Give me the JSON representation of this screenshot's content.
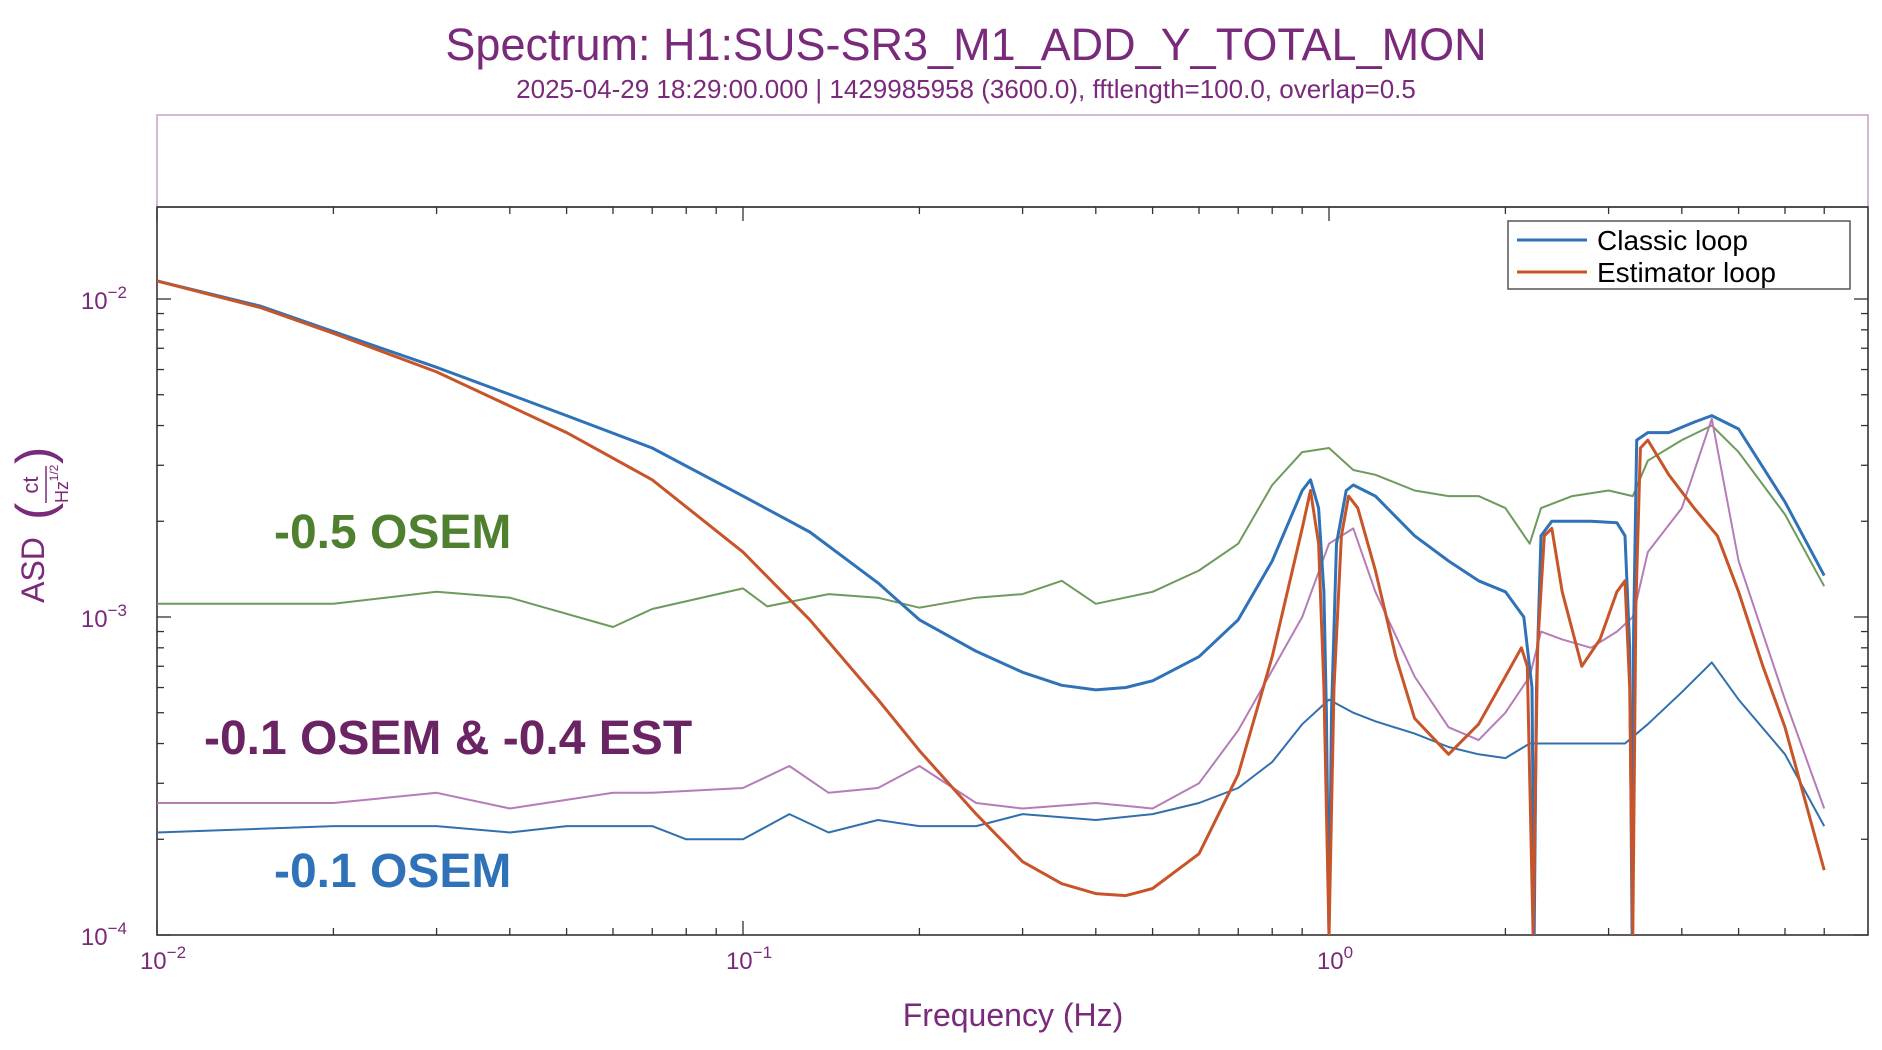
{
  "chart_data": {
    "type": "line",
    "title": "Spectrum: H1:SUS-SR3_M1_ADD_Y_TOTAL_MON",
    "subtitle": "2025-04-29 18:29:00.000 | 1429985958 (3600.0), fftlength=100.0, overlap=0.5",
    "xlabel": "Frequency (Hz)",
    "ylabel": "ASD",
    "ylabel_unit_numerator": "ct",
    "ylabel_unit_denominator": "Hz",
    "ylabel_unit_exponent": "1/2",
    "x_scale": "log",
    "y_scale": "log",
    "xlim": [
      0.01,
      7
    ],
    "ylim": [
      0.0001,
      0.02
    ],
    "grid": false,
    "legend_position": "top-right",
    "x_ticks": [
      {
        "value": 0.01,
        "base": "10",
        "exp": "−2"
      },
      {
        "value": 0.1,
        "base": "10",
        "exp": "−1"
      },
      {
        "value": 1,
        "base": "10",
        "exp": "0"
      }
    ],
    "y_ticks": [
      {
        "value": 0.01,
        "base": "10",
        "exp": "−2"
      },
      {
        "value": 0.001,
        "base": "10",
        "exp": "−3"
      },
      {
        "value": 0.0001,
        "base": "10",
        "exp": "−4"
      }
    ],
    "legend": [
      {
        "name": "Classic loop",
        "color": "#2f72b8"
      },
      {
        "name": "Estimator loop",
        "color": "#c8552a"
      }
    ],
    "annotations": [
      {
        "text": "-0.5 OSEM",
        "color": "#4f8030"
      },
      {
        "text": "-0.1 OSEM  &  -0.4 EST",
        "color": "#6a2464"
      },
      {
        "text": "-0.1 OSEM",
        "color": "#2f72b8"
      }
    ],
    "series": [
      {
        "name": "Classic loop",
        "color": "#2f72b8",
        "width": 3,
        "points": [
          [
            0.01,
            0.0114
          ],
          [
            0.015,
            0.0095
          ],
          [
            0.02,
            0.0079
          ],
          [
            0.03,
            0.0061
          ],
          [
            0.05,
            0.0043
          ],
          [
            0.07,
            0.0034
          ],
          [
            0.1,
            0.0024
          ],
          [
            0.13,
            0.00185
          ],
          [
            0.17,
            0.00128
          ],
          [
            0.2,
            0.00098
          ],
          [
            0.25,
            0.00078
          ],
          [
            0.3,
            0.00067
          ],
          [
            0.35,
            0.00061
          ],
          [
            0.4,
            0.00059
          ],
          [
            0.45,
            0.0006
          ],
          [
            0.5,
            0.00063
          ],
          [
            0.6,
            0.00075
          ],
          [
            0.7,
            0.00098
          ],
          [
            0.8,
            0.0015
          ],
          [
            0.9,
            0.0025
          ],
          [
            0.93,
            0.0027
          ],
          [
            0.96,
            0.0022
          ],
          [
            0.98,
            0.0012
          ],
          [
            0.99,
            0.0005
          ],
          [
            1.0,
            0.0001
          ],
          [
            1.01,
            0.0005
          ],
          [
            1.03,
            0.0017
          ],
          [
            1.07,
            0.0025
          ],
          [
            1.1,
            0.0026
          ],
          [
            1.2,
            0.0024
          ],
          [
            1.4,
            0.0018
          ],
          [
            1.6,
            0.0015
          ],
          [
            1.8,
            0.0013
          ],
          [
            2.0,
            0.0012
          ],
          [
            2.15,
            0.001
          ],
          [
            2.22,
            0.0006
          ],
          [
            2.24,
            0.0001
          ],
          [
            2.26,
            0.0006
          ],
          [
            2.3,
            0.0018
          ],
          [
            2.4,
            0.002
          ],
          [
            2.8,
            0.002
          ],
          [
            3.1,
            0.00198
          ],
          [
            3.2,
            0.0018
          ],
          [
            3.26,
            0.0008
          ],
          [
            3.29,
            0.0001
          ],
          [
            3.31,
            0.0009
          ],
          [
            3.35,
            0.0036
          ],
          [
            3.5,
            0.0038
          ],
          [
            3.8,
            0.0038
          ],
          [
            4.2,
            0.0041
          ],
          [
            4.5,
            0.0043
          ],
          [
            5.0,
            0.0039
          ],
          [
            6.0,
            0.0023
          ],
          [
            7.0,
            0.00135
          ]
        ]
      },
      {
        "name": "Estimator loop",
        "color": "#c8552a",
        "width": 3,
        "points": [
          [
            0.01,
            0.0114
          ],
          [
            0.015,
            0.0094
          ],
          [
            0.02,
            0.0078
          ],
          [
            0.03,
            0.0059
          ],
          [
            0.05,
            0.0038
          ],
          [
            0.07,
            0.0027
          ],
          [
            0.1,
            0.0016
          ],
          [
            0.13,
            0.00098
          ],
          [
            0.17,
            0.00055
          ],
          [
            0.2,
            0.00038
          ],
          [
            0.25,
            0.00024
          ],
          [
            0.3,
            0.00017
          ],
          [
            0.35,
            0.000145
          ],
          [
            0.4,
            0.000135
          ],
          [
            0.45,
            0.000133
          ],
          [
            0.5,
            0.00014
          ],
          [
            0.6,
            0.00018
          ],
          [
            0.7,
            0.00032
          ],
          [
            0.8,
            0.00075
          ],
          [
            0.9,
            0.0019
          ],
          [
            0.93,
            0.0025
          ],
          [
            0.96,
            0.0017
          ],
          [
            0.98,
            0.0006
          ],
          [
            1.0,
            0.0001
          ],
          [
            1.02,
            0.0006
          ],
          [
            1.05,
            0.0018
          ],
          [
            1.08,
            0.0024
          ],
          [
            1.12,
            0.0022
          ],
          [
            1.2,
            0.0014
          ],
          [
            1.3,
            0.00075
          ],
          [
            1.4,
            0.00048
          ],
          [
            1.6,
            0.00037
          ],
          [
            1.8,
            0.00046
          ],
          [
            2.0,
            0.00065
          ],
          [
            2.13,
            0.0008
          ],
          [
            2.18,
            0.0007
          ],
          [
            2.23,
            0.0001
          ],
          [
            2.27,
            0.0008
          ],
          [
            2.33,
            0.0018
          ],
          [
            2.4,
            0.0019
          ],
          [
            2.5,
            0.0012
          ],
          [
            2.7,
            0.0007
          ],
          [
            2.9,
            0.00085
          ],
          [
            3.1,
            0.0012
          ],
          [
            3.2,
            0.0013
          ],
          [
            3.26,
            0.0006
          ],
          [
            3.3,
            0.0001
          ],
          [
            3.34,
            0.0011
          ],
          [
            3.4,
            0.0034
          ],
          [
            3.5,
            0.0036
          ],
          [
            3.8,
            0.0028
          ],
          [
            4.2,
            0.0022
          ],
          [
            4.6,
            0.0018
          ],
          [
            5.0,
            0.0012
          ],
          [
            5.5,
            0.0007
          ],
          [
            6.0,
            0.00045
          ],
          [
            7.0,
            0.00016
          ]
        ]
      },
      {
        "name": "-0.5 OSEM",
        "color": "#6e9a5c",
        "width": 2,
        "points": [
          [
            0.01,
            0.0011
          ],
          [
            0.02,
            0.0011
          ],
          [
            0.03,
            0.0012
          ],
          [
            0.04,
            0.00115
          ],
          [
            0.06,
            0.00093
          ],
          [
            0.07,
            0.00106
          ],
          [
            0.1,
            0.00123
          ],
          [
            0.11,
            0.00108
          ],
          [
            0.14,
            0.00118
          ],
          [
            0.17,
            0.00115
          ],
          [
            0.2,
            0.00107
          ],
          [
            0.25,
            0.00115
          ],
          [
            0.3,
            0.00118
          ],
          [
            0.35,
            0.0013
          ],
          [
            0.4,
            0.0011
          ],
          [
            0.5,
            0.0012
          ],
          [
            0.6,
            0.0014
          ],
          [
            0.7,
            0.0017
          ],
          [
            0.8,
            0.0026
          ],
          [
            0.9,
            0.0033
          ],
          [
            1.0,
            0.0034
          ],
          [
            1.1,
            0.0029
          ],
          [
            1.2,
            0.0028
          ],
          [
            1.4,
            0.0025
          ],
          [
            1.6,
            0.0024
          ],
          [
            1.8,
            0.0024
          ],
          [
            2.0,
            0.0022
          ],
          [
            2.2,
            0.0017
          ],
          [
            2.3,
            0.0022
          ],
          [
            2.6,
            0.0024
          ],
          [
            3.0,
            0.0025
          ],
          [
            3.3,
            0.0024
          ],
          [
            3.5,
            0.0031
          ],
          [
            4.0,
            0.0036
          ],
          [
            4.5,
            0.004
          ],
          [
            5.0,
            0.0033
          ],
          [
            6.0,
            0.0021
          ],
          [
            7.0,
            0.00125
          ]
        ]
      },
      {
        "name": "-0.1 OSEM & -0.4 EST",
        "color": "#b57cb8",
        "width": 2,
        "points": [
          [
            0.01,
            0.00026
          ],
          [
            0.02,
            0.00026
          ],
          [
            0.03,
            0.00028
          ],
          [
            0.04,
            0.00025
          ],
          [
            0.06,
            0.00028
          ],
          [
            0.07,
            0.00028
          ],
          [
            0.1,
            0.00029
          ],
          [
            0.12,
            0.00034
          ],
          [
            0.14,
            0.00028
          ],
          [
            0.17,
            0.00029
          ],
          [
            0.2,
            0.00034
          ],
          [
            0.25,
            0.00026
          ],
          [
            0.3,
            0.00025
          ],
          [
            0.4,
            0.00026
          ],
          [
            0.5,
            0.00025
          ],
          [
            0.6,
            0.0003
          ],
          [
            0.7,
            0.00044
          ],
          [
            0.8,
            0.00068
          ],
          [
            0.9,
            0.001
          ],
          [
            1.0,
            0.0017
          ],
          [
            1.1,
            0.0019
          ],
          [
            1.2,
            0.0012
          ],
          [
            1.4,
            0.00065
          ],
          [
            1.6,
            0.00045
          ],
          [
            1.8,
            0.00041
          ],
          [
            2.0,
            0.0005
          ],
          [
            2.2,
            0.00065
          ],
          [
            2.3,
            0.0009
          ],
          [
            2.5,
            0.00085
          ],
          [
            2.8,
            0.0008
          ],
          [
            3.1,
            0.0009
          ],
          [
            3.3,
            0.001
          ],
          [
            3.5,
            0.0016
          ],
          [
            4.0,
            0.0022
          ],
          [
            4.5,
            0.0042
          ],
          [
            5.0,
            0.0015
          ],
          [
            6.0,
            0.00055
          ],
          [
            7.0,
            0.00025
          ]
        ]
      },
      {
        "name": "-0.1 OSEM",
        "color": "#3270ad",
        "width": 2,
        "points": [
          [
            0.01,
            0.00021
          ],
          [
            0.02,
            0.00022
          ],
          [
            0.03,
            0.00022
          ],
          [
            0.04,
            0.00021
          ],
          [
            0.05,
            0.00022
          ],
          [
            0.07,
            0.00022
          ],
          [
            0.08,
            0.0002
          ],
          [
            0.1,
            0.0002
          ],
          [
            0.12,
            0.00024
          ],
          [
            0.14,
            0.00021
          ],
          [
            0.17,
            0.00023
          ],
          [
            0.2,
            0.00022
          ],
          [
            0.25,
            0.00022
          ],
          [
            0.3,
            0.00024
          ],
          [
            0.4,
            0.00023
          ],
          [
            0.5,
            0.00024
          ],
          [
            0.6,
            0.00026
          ],
          [
            0.7,
            0.00029
          ],
          [
            0.8,
            0.00035
          ],
          [
            0.9,
            0.00046
          ],
          [
            1.0,
            0.00055
          ],
          [
            1.1,
            0.0005
          ],
          [
            1.2,
            0.00047
          ],
          [
            1.4,
            0.00043
          ],
          [
            1.6,
            0.00039
          ],
          [
            1.8,
            0.00037
          ],
          [
            2.0,
            0.00036
          ],
          [
            2.2,
            0.0004
          ],
          [
            2.4,
            0.0004
          ],
          [
            2.8,
            0.0004
          ],
          [
            3.2,
            0.0004
          ],
          [
            3.5,
            0.00046
          ],
          [
            4.0,
            0.00058
          ],
          [
            4.5,
            0.00072
          ],
          [
            5.0,
            0.00055
          ],
          [
            6.0,
            0.00037
          ],
          [
            7.0,
            0.00022
          ]
        ]
      }
    ]
  }
}
